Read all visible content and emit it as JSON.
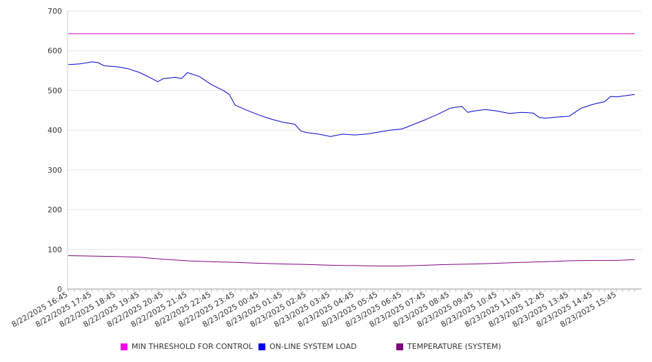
{
  "chart_data": {
    "type": "line",
    "ylim": [
      0,
      700
    ],
    "y_ticks": [
      0,
      100,
      200,
      300,
      400,
      500,
      600,
      700
    ],
    "x_tick_labels": [
      "8/22/2025 16:45",
      "8/22/2025 17:45",
      "8/22/2025 18:45",
      "8/22/2025 19:45",
      "8/22/2025 20:45",
      "8/22/2025 21:45",
      "8/22/2025 22:45",
      "8/22/2025 23:45",
      "8/23/2025 00:45",
      "8/23/2025 01:45",
      "8/23/2025 02:45",
      "8/23/2025 03:45",
      "8/23/2025 04:45",
      "8/23/2025 05:45",
      "8/23/2025 06:45",
      "8/23/2025 07:45",
      "8/23/2025 08:45",
      "8/23/2025 09:45",
      "8/23/2025 10:45",
      "8/23/2025 11:45",
      "8/23/2025 12:45",
      "8/23/2025 13:45",
      "8/23/2025 14:45",
      "8/23/2025 15:45"
    ],
    "x_end": "8/23/2025 16:30",
    "grid": true,
    "legend_position": "bottom",
    "series": [
      {
        "name": "MIN THRESHOLD FOR CONTROL",
        "color": "#cc00cc",
        "points": [
          [
            "8/22/2025 16:45",
            643
          ],
          [
            "8/23/2025 16:30",
            643
          ]
        ]
      },
      {
        "name": "ON-LINE SYSTEM LOAD",
        "color": "#0000cc",
        "points": [
          [
            "8/22/2025 16:45",
            565
          ],
          [
            "8/22/2025 17:15",
            567
          ],
          [
            "8/22/2025 17:45",
            572
          ],
          [
            "8/22/2025 18:00",
            570
          ],
          [
            "8/22/2025 18:15",
            562
          ],
          [
            "8/22/2025 18:45",
            560
          ],
          [
            "8/22/2025 19:15",
            555
          ],
          [
            "8/22/2025 19:45",
            545
          ],
          [
            "8/22/2025 20:15",
            530
          ],
          [
            "8/22/2025 20:30",
            522
          ],
          [
            "8/22/2025 20:45",
            530
          ],
          [
            "8/22/2025 21:15",
            533
          ],
          [
            "8/22/2025 21:30",
            530
          ],
          [
            "8/22/2025 21:45",
            545
          ],
          [
            "8/22/2025 22:15",
            535
          ],
          [
            "8/22/2025 22:45",
            515
          ],
          [
            "8/22/2025 23:15",
            500
          ],
          [
            "8/22/2025 23:30",
            490
          ],
          [
            "8/22/2025 23:45",
            463
          ],
          [
            "8/23/2025 00:15",
            450
          ],
          [
            "8/23/2025 00:45",
            438
          ],
          [
            "8/23/2025 01:15",
            428
          ],
          [
            "8/23/2025 01:45",
            420
          ],
          [
            "8/23/2025 02:15",
            415
          ],
          [
            "8/23/2025 02:30",
            398
          ],
          [
            "8/23/2025 02:45",
            394
          ],
          [
            "8/23/2025 03:15",
            390
          ],
          [
            "8/23/2025 03:45",
            384
          ],
          [
            "8/23/2025 04:15",
            390
          ],
          [
            "8/23/2025 04:45",
            388
          ],
          [
            "8/23/2025 05:15",
            390
          ],
          [
            "8/23/2025 05:45",
            395
          ],
          [
            "8/23/2025 06:15",
            400
          ],
          [
            "8/23/2025 06:45",
            403
          ],
          [
            "8/23/2025 07:15",
            415
          ],
          [
            "8/23/2025 07:45",
            427
          ],
          [
            "8/23/2025 08:15",
            440
          ],
          [
            "8/23/2025 08:45",
            455
          ],
          [
            "8/23/2025 09:15",
            460
          ],
          [
            "8/23/2025 09:30",
            445
          ],
          [
            "8/23/2025 09:45",
            448
          ],
          [
            "8/23/2025 10:15",
            452
          ],
          [
            "8/23/2025 10:45",
            448
          ],
          [
            "8/23/2025 11:15",
            442
          ],
          [
            "8/23/2025 11:45",
            445
          ],
          [
            "8/23/2025 12:15",
            443
          ],
          [
            "8/23/2025 12:30",
            432
          ],
          [
            "8/23/2025 12:45",
            430
          ],
          [
            "8/23/2025 13:15",
            433
          ],
          [
            "8/23/2025 13:45",
            435
          ],
          [
            "8/23/2025 14:15",
            455
          ],
          [
            "8/23/2025 14:45",
            465
          ],
          [
            "8/23/2025 15:15",
            472
          ],
          [
            "8/23/2025 15:30",
            485
          ],
          [
            "8/23/2025 15:45",
            484
          ],
          [
            "8/23/2025 16:30",
            490
          ]
        ]
      },
      {
        "name": "TEMPERATURE (SYSTEM)",
        "color": "#800080",
        "points": [
          [
            "8/22/2025 16:45",
            84
          ],
          [
            "8/22/2025 17:45",
            83
          ],
          [
            "8/22/2025 18:45",
            82
          ],
          [
            "8/22/2025 19:45",
            80
          ],
          [
            "8/22/2025 20:45",
            75
          ],
          [
            "8/22/2025 21:45",
            71
          ],
          [
            "8/22/2025 22:45",
            69
          ],
          [
            "8/22/2025 23:45",
            67
          ],
          [
            "8/23/2025 00:45",
            65
          ],
          [
            "8/23/2025 01:45",
            63
          ],
          [
            "8/23/2025 02:45",
            62
          ],
          [
            "8/23/2025 03:45",
            60
          ],
          [
            "8/23/2025 04:45",
            59
          ],
          [
            "8/23/2025 05:45",
            58
          ],
          [
            "8/23/2025 06:45",
            58
          ],
          [
            "8/23/2025 07:45",
            60
          ],
          [
            "8/23/2025 08:45",
            62
          ],
          [
            "8/23/2025 09:45",
            63
          ],
          [
            "8/23/2025 10:45",
            65
          ],
          [
            "8/23/2025 11:45",
            67
          ],
          [
            "8/23/2025 12:45",
            69
          ],
          [
            "8/23/2025 13:45",
            71
          ],
          [
            "8/23/2025 14:45",
            72
          ],
          [
            "8/23/2025 15:45",
            72
          ],
          [
            "8/23/2025 16:30",
            74
          ]
        ]
      }
    ]
  }
}
